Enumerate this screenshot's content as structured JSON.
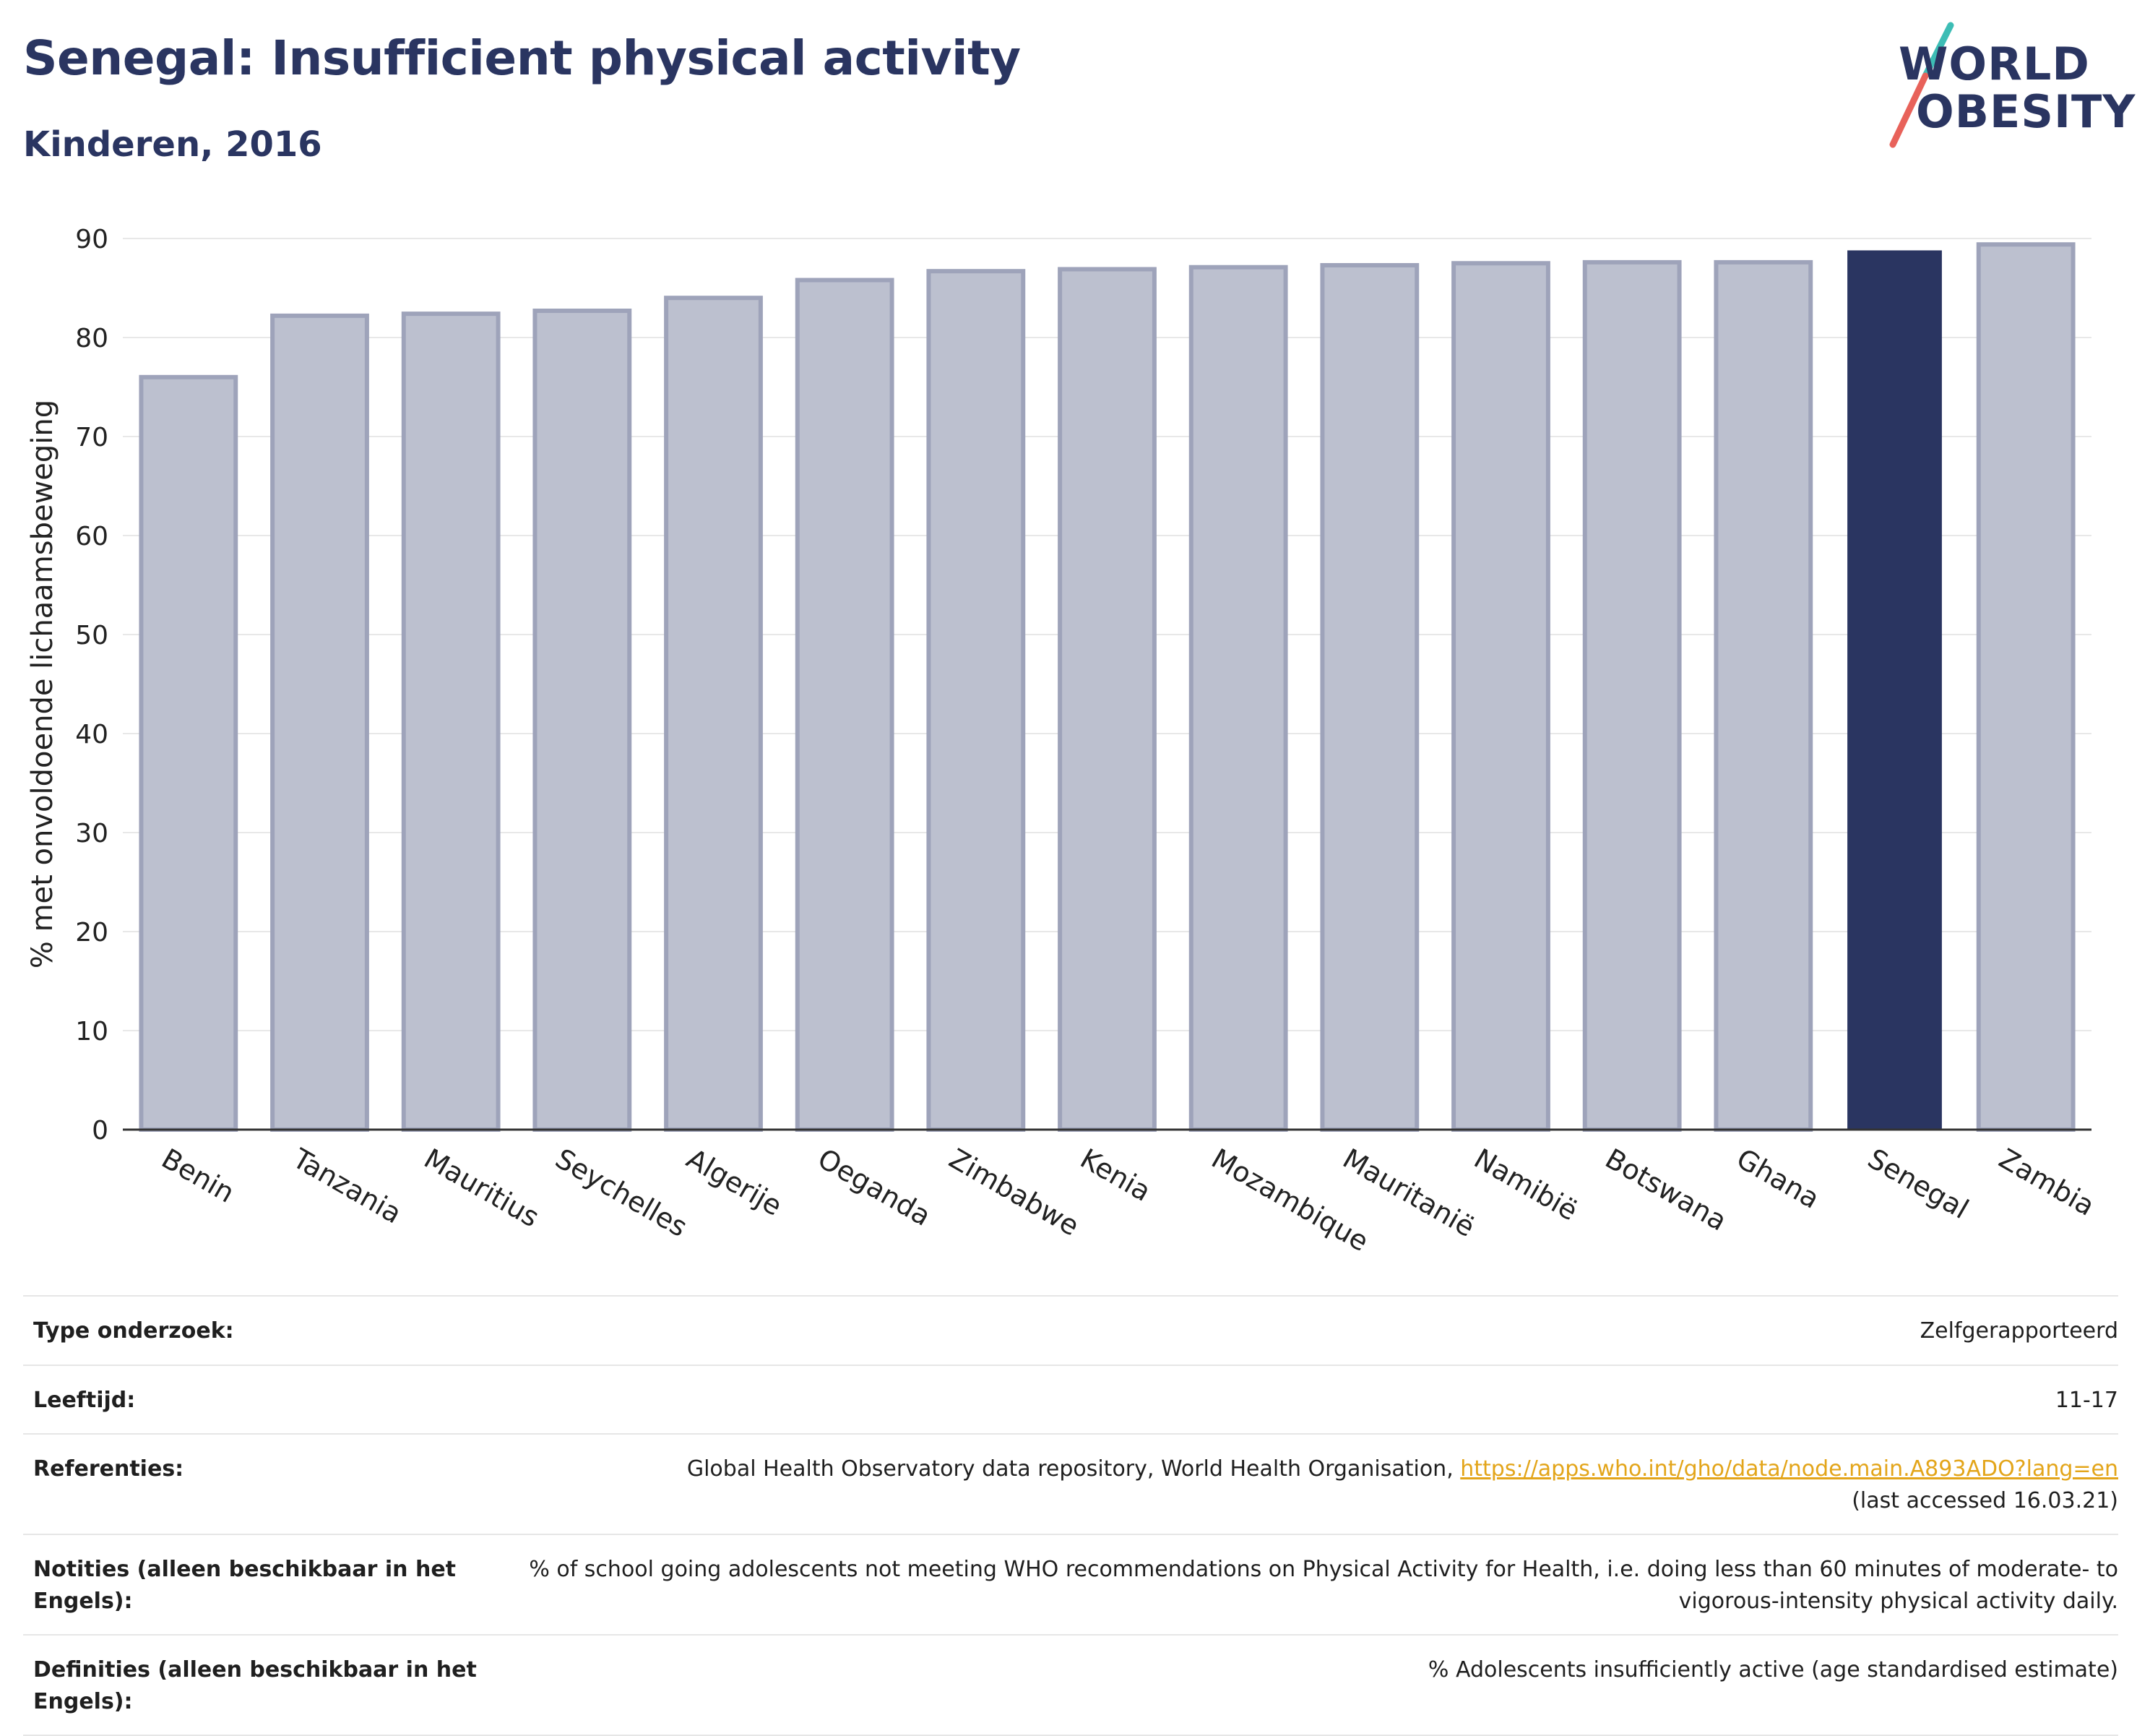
{
  "header": {
    "title": "Senegal: Insufficient physical activity",
    "subtitle": "Kinderen, 2016"
  },
  "logo": {
    "line1": "WORLD",
    "line2": "OBESITY",
    "colors": {
      "text": "#2a3561",
      "slash_top": "#3dbdb5",
      "slash_bottom": "#e8625a"
    }
  },
  "chart_data": {
    "type": "bar",
    "categories": [
      "Benin",
      "Tanzania",
      "Mauritius",
      "Seychelles",
      "Algerije",
      "Oeganda",
      "Zimbabwe",
      "Kenia",
      "Mozambique",
      "Mauritanië",
      "Namibië",
      "Botswana",
      "Ghana",
      "Senegal",
      "Zambia"
    ],
    "values": [
      76.0,
      82.2,
      82.4,
      82.7,
      84.0,
      85.8,
      86.7,
      86.9,
      87.1,
      87.3,
      87.5,
      87.6,
      87.6,
      88.8,
      89.4
    ],
    "highlight": "Senegal",
    "title": "",
    "xlabel": "",
    "ylabel": "% met onvoldoende lichaamsbeweging",
    "ylim": [
      0,
      90
    ],
    "yticks": [
      0,
      10,
      20,
      30,
      40,
      50,
      60,
      70,
      80,
      90
    ],
    "grid": true,
    "colors": {
      "highlight": "#2a3561",
      "bar_fill": "#bcc0cf",
      "bar_stroke": "#9ea3ba",
      "grid": "#e8e8e8"
    }
  },
  "info_table": [
    {
      "label": "Type onderzoek:",
      "value": "Zelfgerapporteerd"
    },
    {
      "label": "Leeftijd:",
      "value": "11-17"
    },
    {
      "label": "Referenties:",
      "value": "Global Health Observatory data repository, World Health Organisation, ",
      "link": "https://apps.who.int/gho/data/node.main.A893ADO?lang=en",
      "value_after": "(last accessed 16.03.21)"
    },
    {
      "label": "Notities (alleen beschikbaar in het Engels):",
      "value": "% of school going adolescents not meeting WHO recommendations on Physical Activity for Health, i.e. doing less than 60 minutes of moderate- to vigorous-intensity physical activity daily."
    },
    {
      "label": "Definities (alleen beschikbaar in het Engels):",
      "value": "% Adolescents insufficiently active (age standardised estimate)"
    }
  ]
}
